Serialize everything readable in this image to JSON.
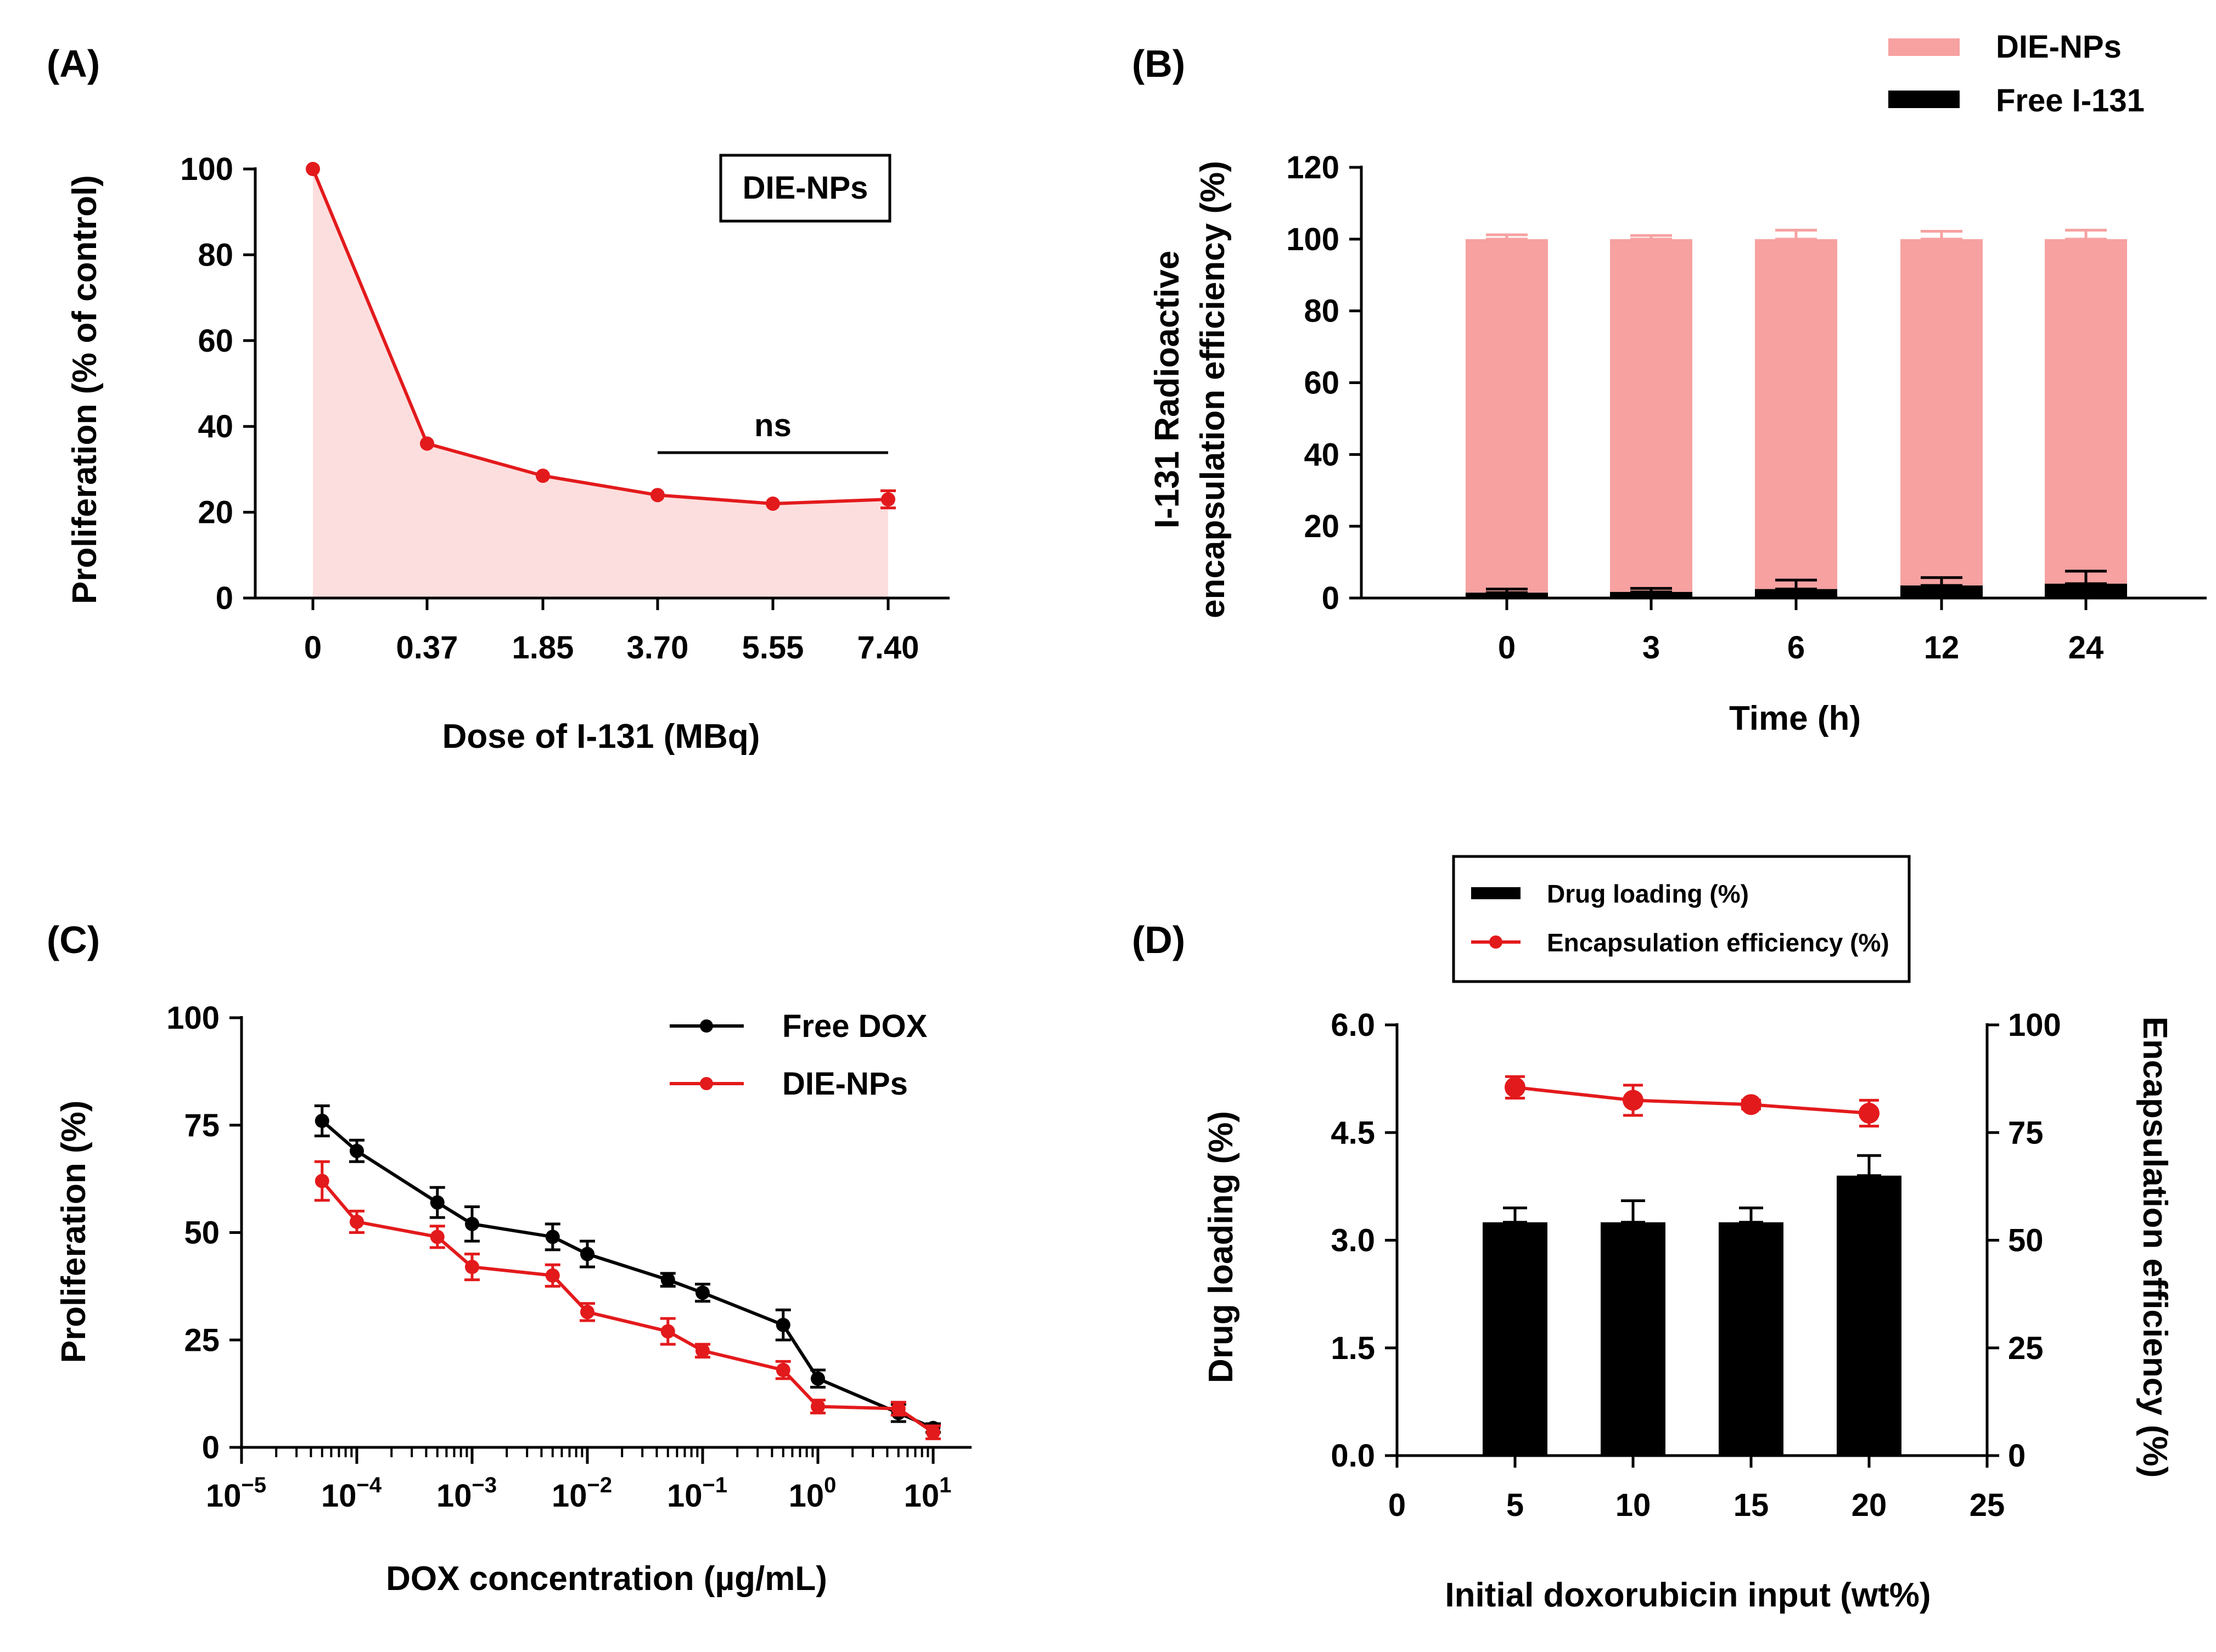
{
  "colors": {
    "red": "#e31a1c",
    "pink": "#f7a1a1",
    "light_pink": "#fddede",
    "black": "#000000"
  },
  "chart_data": [
    {
      "panel": "(A)",
      "type": "area",
      "title": "",
      "xlabel": "Dose of I-131 (MBq)",
      "ylabel": "Proliferation (% of control)",
      "categories": [
        "0",
        "0.37",
        "1.85",
        "3.70",
        "5.55",
        "7.40"
      ],
      "values": [
        100,
        36,
        28.5,
        24,
        22,
        23
      ],
      "errors": [
        0,
        0,
        0,
        0,
        0,
        2
      ],
      "ylim": [
        0,
        100
      ],
      "yticks": [
        "0",
        "20",
        "40",
        "60",
        "80",
        "100"
      ],
      "legend": "DIE-NPs",
      "annotation": {
        "text": "ns",
        "from_category": "3.70",
        "to_category": "7.40"
      }
    },
    {
      "panel": "(B)",
      "type": "bar",
      "title": "",
      "xlabel": "Time (h)",
      "ylabel_line1": "I-131 Radioactive",
      "ylabel_line2": "encapsulation efficiency (%)",
      "categories": [
        "0",
        "3",
        "6",
        "12",
        "24"
      ],
      "series": [
        {
          "name": "DIE-NPs",
          "values": [
            98.5,
            98.3,
            97.5,
            96.5,
            96
          ],
          "errors": [
            1.2,
            1,
            2.5,
            2.2,
            2.5
          ]
        },
        {
          "name": "Free I-131",
          "values": [
            1.5,
            1.7,
            2.5,
            3.5,
            4
          ],
          "errors": [
            1,
            1,
            2.5,
            2.2,
            3.5
          ]
        }
      ],
      "stacked": true,
      "ylim": [
        0,
        120
      ],
      "yticks": [
        "0",
        "20",
        "40",
        "60",
        "80",
        "100",
        "120"
      ]
    },
    {
      "panel": "(C)",
      "type": "line",
      "title": "",
      "xlabel": "DOX concentration (µg/mL)",
      "ylabel": "Proliferation (%)",
      "xscale": "log",
      "xlim_exponents": [
        -5,
        1
      ],
      "x": [
        5e-05,
        0.0001,
        0.0005,
        0.001,
        0.005,
        0.01,
        0.05,
        0.1,
        0.5,
        1,
        5,
        10
      ],
      "series": [
        {
          "name": "Free DOX",
          "values": [
            76,
            69,
            57,
            52,
            49,
            45,
            39,
            36,
            28.5,
            16,
            8,
            4.5
          ],
          "errors": [
            3.5,
            2.5,
            3.5,
            4,
            3,
            3,
            1.5,
            2,
            3.5,
            2,
            2,
            1
          ]
        },
        {
          "name": "DIE-NPs",
          "values": [
            62,
            52.5,
            49,
            42,
            40,
            31.5,
            27,
            22.5,
            18,
            9.5,
            9,
            3.5
          ],
          "errors": [
            4.5,
            2.5,
            2.5,
            3,
            2.5,
            2,
            3,
            1.5,
            2,
            1.5,
            1.5,
            1.5
          ]
        }
      ],
      "ylim": [
        0,
        100
      ],
      "yticks": [
        "0",
        "25",
        "50",
        "75",
        "100"
      ],
      "xtick_base": "10",
      "xtick_exponents": [
        "−5",
        "−4",
        "−3",
        "−2",
        "−1",
        "0",
        "1"
      ],
      "legend": "top-right"
    },
    {
      "panel": "(D)",
      "type": "bar",
      "title": "",
      "xlabel": "Initial doxorubicin input (wt%)",
      "ylabel_left": "Drug loading (%)",
      "ylabel_right": "Encapsulation efficiency (%)",
      "x": [
        5,
        10,
        15,
        20
      ],
      "xlim": [
        0,
        25
      ],
      "xticks": [
        "0",
        "5",
        "10",
        "15",
        "20",
        "25"
      ],
      "series": [
        {
          "name": "Drug loading (%)",
          "axis": "left",
          "kind": "bar",
          "values": [
            3.25,
            3.25,
            3.25,
            3.9
          ],
          "errors": [
            0.2,
            0.3,
            0.2,
            0.28
          ]
        },
        {
          "name": "Encapsulation efficiency (%)",
          "axis": "right",
          "kind": "line",
          "values": [
            85.5,
            82.5,
            81.5,
            79.5
          ],
          "errors": [
            2.5,
            3.5,
            1,
            3
          ]
        }
      ],
      "ylim_left": [
        0,
        6
      ],
      "yticks_left": [
        "0.0",
        "1.5",
        "3.0",
        "4.5",
        "6.0"
      ],
      "ylim_right": [
        0,
        100
      ],
      "yticks_right": [
        "0",
        "25",
        "50",
        "75",
        "100"
      ],
      "legend": "top"
    }
  ]
}
